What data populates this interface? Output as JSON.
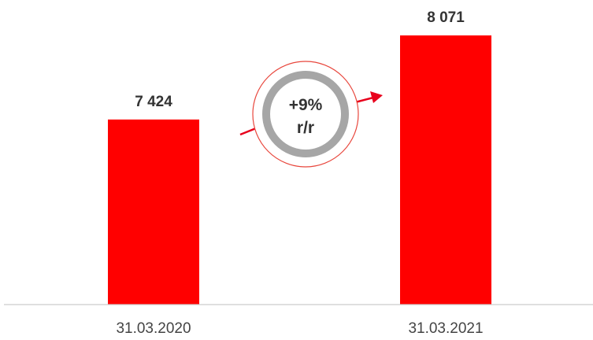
{
  "chart_data": {
    "type": "bar",
    "categories": [
      "31.03.2020",
      "31.03.2021"
    ],
    "values": [
      7424,
      8071
    ],
    "value_labels": [
      "7 424",
      "8 071"
    ],
    "ylim": [
      6000,
      8071
    ],
    "grid": false,
    "bar_color": "#ff0000",
    "axis_color": "#cccccc",
    "annotation": {
      "line1": "+9%",
      "line2": "r/r",
      "ring_color": "#a6a6a6",
      "outline_color": "#e8463c",
      "arrow_color": "#e8001c"
    }
  }
}
